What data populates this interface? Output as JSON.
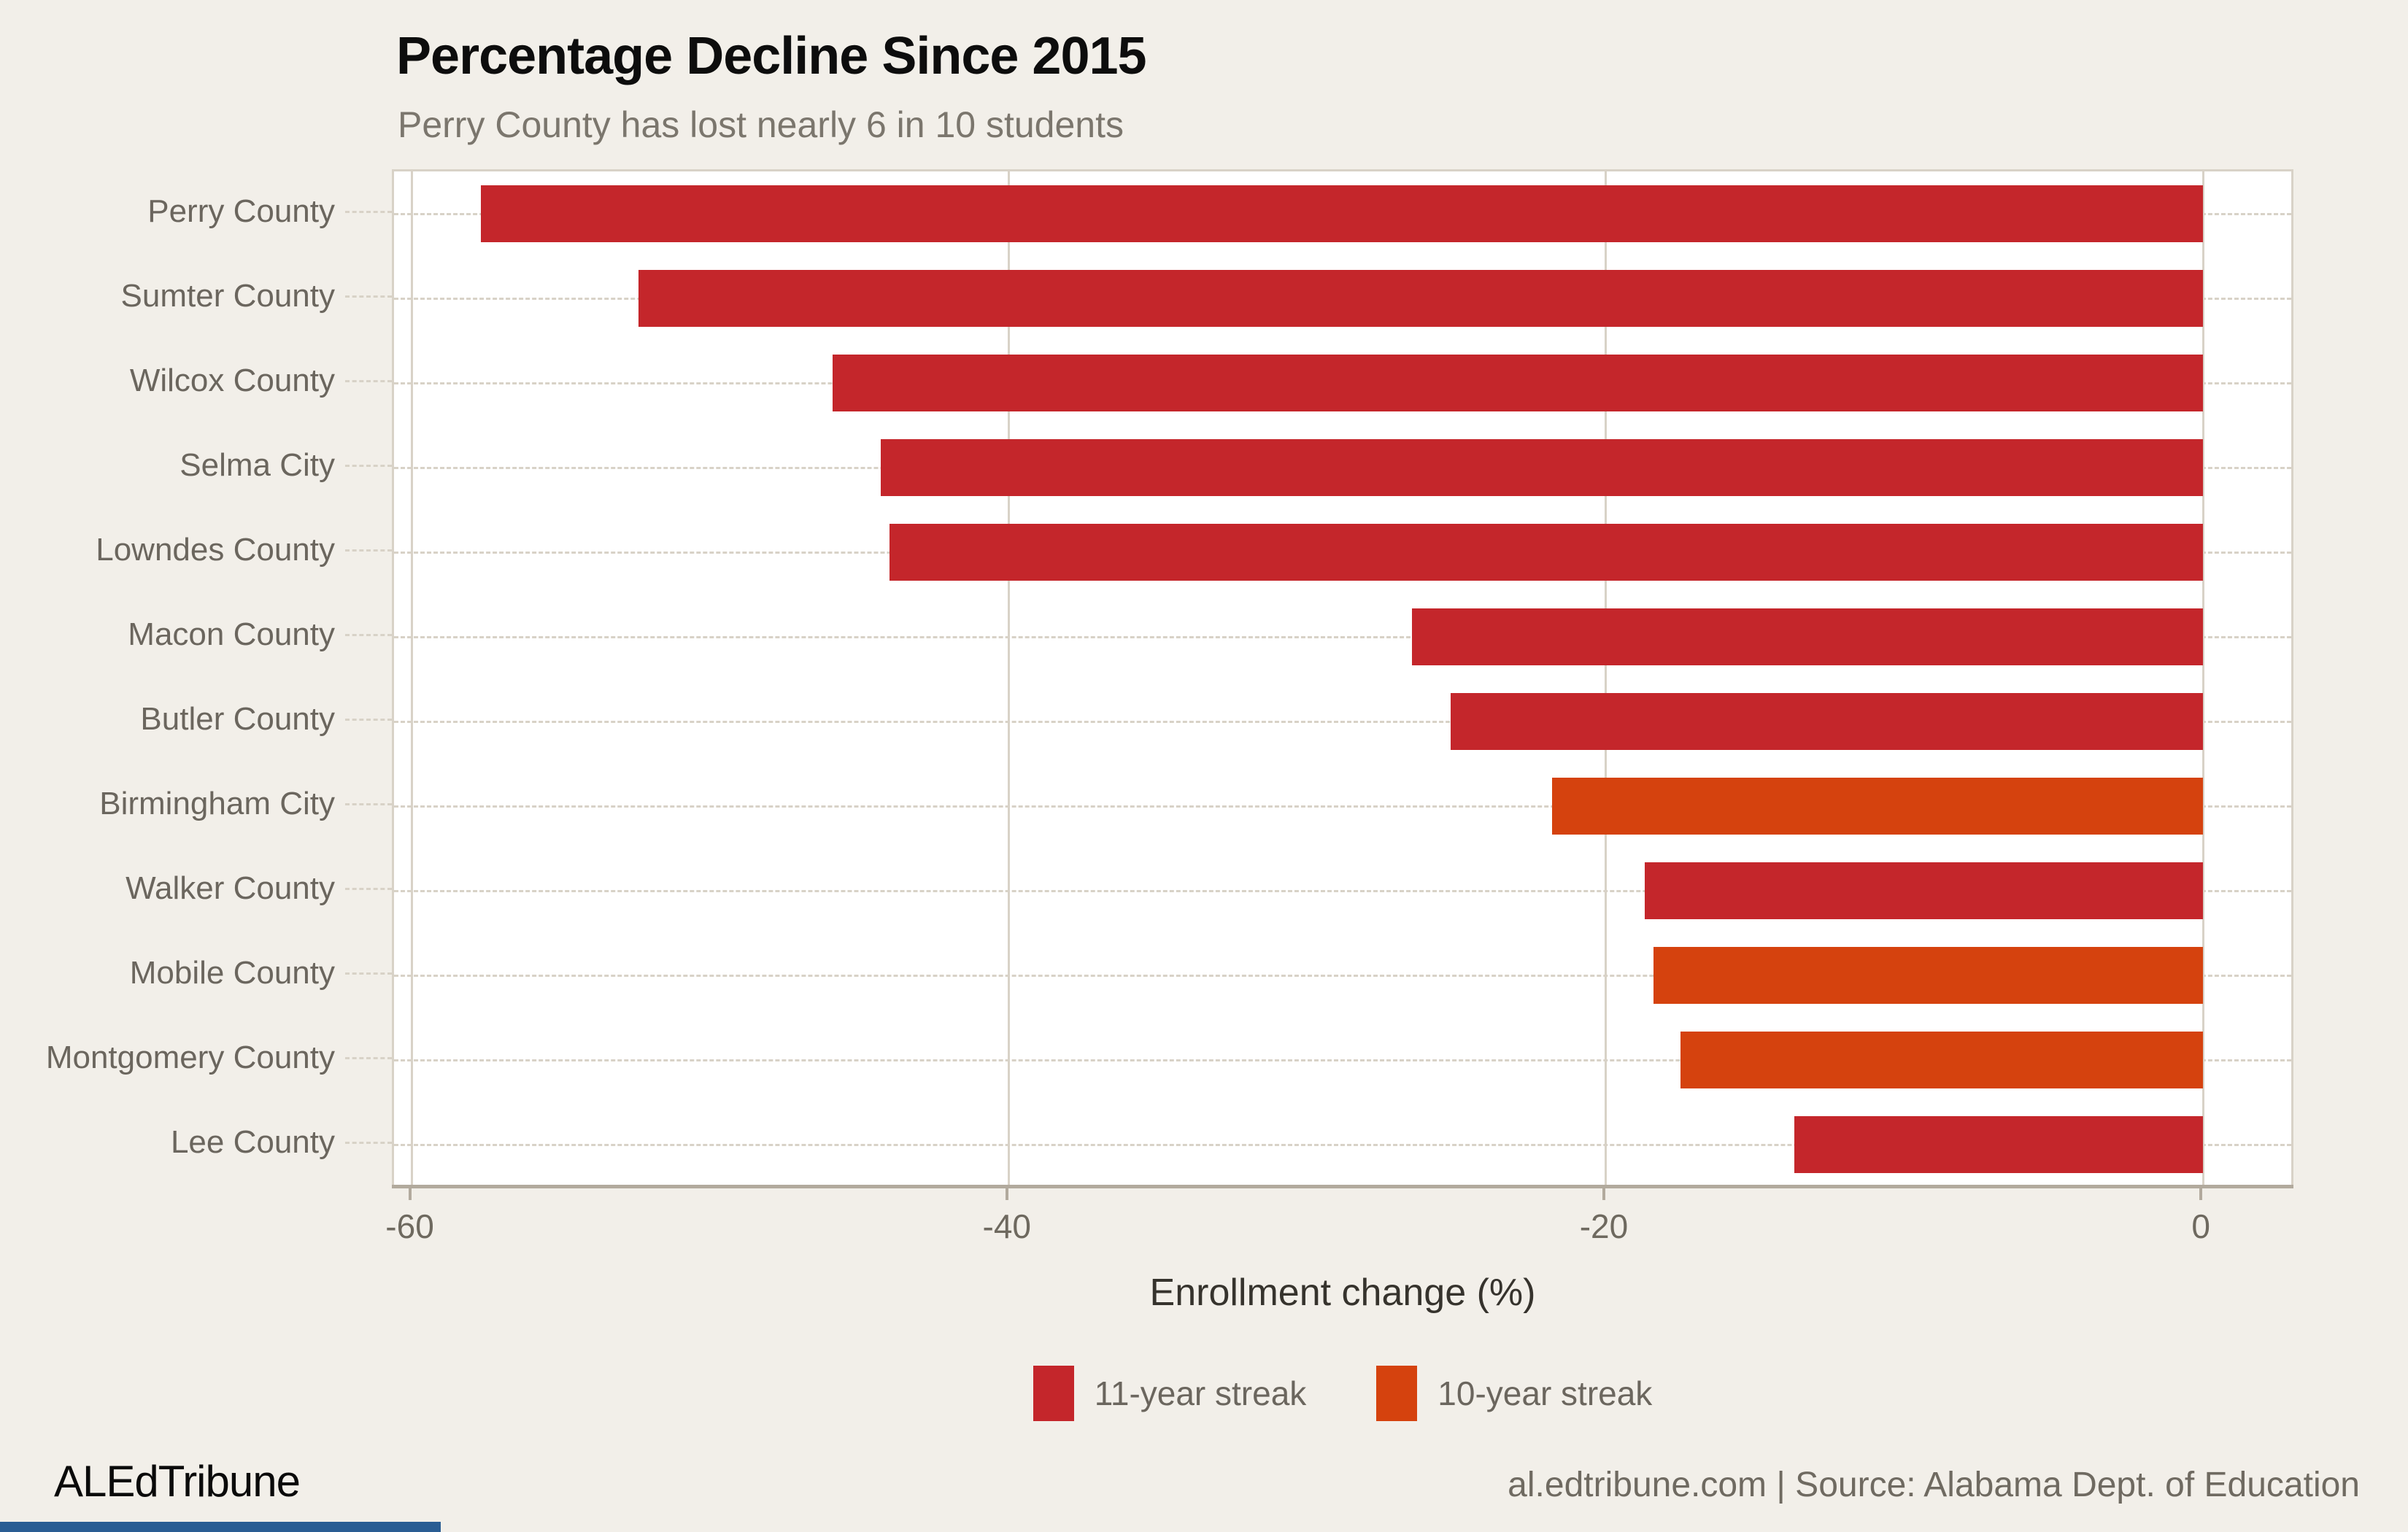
{
  "page": {
    "background": "#f2efe9",
    "panel_background": "#ffffff"
  },
  "header": {
    "title": "Percentage Decline Since 2015",
    "subtitle": "Perry County has lost nearly 6 in 10 students"
  },
  "chart_data": {
    "type": "bar",
    "orientation": "horizontal",
    "title": "Percentage Decline Since 2015",
    "subtitle": "Perry County has lost nearly 6 in 10 students",
    "xlabel": "Enrollment change (%)",
    "ylabel": "",
    "xlim": [
      -60.6,
      3.1
    ],
    "x_ticks": [
      -60,
      -40,
      -20,
      0
    ],
    "grid": true,
    "legend_position": "bottom",
    "categories": [
      "Perry County",
      "Sumter County",
      "Wilcox County",
      "Selma City",
      "Lowndes County",
      "Macon County",
      "Butler County",
      "Birmingham City",
      "Walker County",
      "Mobile County",
      "Montgomery County",
      "Lee County"
    ],
    "values": [
      -57.7,
      -52.4,
      -45.9,
      -44.3,
      -44.0,
      -26.5,
      -25.2,
      -21.8,
      -18.7,
      -18.4,
      -17.5,
      -13.7
    ],
    "streaks": [
      "11-year",
      "11-year",
      "11-year",
      "11-year",
      "11-year",
      "11-year",
      "11-year",
      "10-year",
      "11-year",
      "10-year",
      "10-year",
      "11-year"
    ],
    "series_colors": {
      "11-year": "#c4262b",
      "10-year": "#d5420e"
    }
  },
  "legend": {
    "items": [
      {
        "label": "11-year streak",
        "color": "#c4262b"
      },
      {
        "label": "10-year streak",
        "color": "#d5420e"
      }
    ]
  },
  "axis": {
    "line_color": "#b2aa9d",
    "grid_color": "#d8d2c7",
    "tick_label_color": "#6e695f"
  },
  "footer": {
    "brand": "ALEdTribune",
    "source": "al.edtribune.com | Source: Alabama Dept. of Education",
    "accent_color": "#2a5d93"
  }
}
